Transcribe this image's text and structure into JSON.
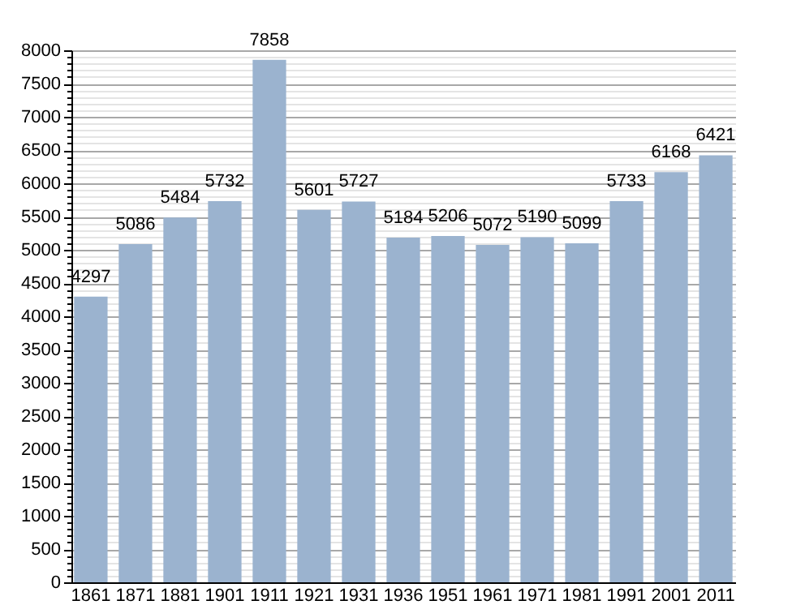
{
  "chart_data": {
    "type": "bar",
    "categories": [
      "1861",
      "1871",
      "1881",
      "1901",
      "1911",
      "1921",
      "1931",
      "1936",
      "1951",
      "1961",
      "1971",
      "1981",
      "1991",
      "2001",
      "2011"
    ],
    "values": [
      4297,
      5086,
      5484,
      5732,
      7858,
      5601,
      5727,
      5184,
      5206,
      5072,
      5190,
      5099,
      5733,
      6168,
      6421
    ],
    "color": "#9bb3cf",
    "ylim": [
      0,
      8000
    ],
    "yticks": [
      0,
      {
        "value": 100,
        "label": null
      },
      {
        "value": 200,
        "label": null
      },
      {
        "value": 300,
        "label": null
      },
      {
        "value": 400,
        "label": null
      },
      500,
      {
        "value": 600,
        "label": null
      },
      {
        "value": 700,
        "label": null
      },
      {
        "value": 800,
        "label": null
      },
      {
        "value": 900,
        "label": null
      },
      1000,
      {
        "value": 1100,
        "label": null
      },
      {
        "value": 1200,
        "label": null
      },
      {
        "value": 1300,
        "label": null
      },
      {
        "value": 1400,
        "label": null
      },
      1500,
      {
        "value": 1600,
        "label": null
      },
      {
        "value": 1700,
        "label": null
      },
      {
        "value": 1800,
        "label": null
      },
      {
        "value": 1900,
        "label": null
      },
      2000,
      {
        "value": 2100,
        "label": null
      },
      {
        "value": 2200,
        "label": null
      },
      {
        "value": 2300,
        "label": null
      },
      {
        "value": 2400,
        "label": null
      },
      2500,
      {
        "value": 2600,
        "label": null
      },
      {
        "value": 2700,
        "label": null
      },
      {
        "value": 2800,
        "label": null
      },
      {
        "value": 2900,
        "label": null
      },
      3000,
      {
        "value": 3100,
        "label": null
      },
      {
        "value": 3200,
        "label": null
      },
      {
        "value": 3300,
        "label": null
      },
      {
        "value": 3400,
        "label": null
      },
      3500,
      {
        "value": 3600,
        "label": null
      },
      {
        "value": 3700,
        "label": null
      },
      {
        "value": 3800,
        "label": null
      },
      {
        "value": 3900,
        "label": null
      },
      4000,
      {
        "value": 4100,
        "label": null
      },
      {
        "value": 4200,
        "label": null
      },
      {
        "value": 4300,
        "label": null
      },
      {
        "value": 4400,
        "label": null
      },
      4500,
      {
        "value": 4600,
        "label": null
      },
      {
        "value": 4700,
        "label": null
      },
      {
        "value": 4800,
        "label": null
      },
      {
        "value": 4900,
        "label": null
      },
      5000,
      {
        "value": 5100,
        "label": null
      },
      {
        "value": 5200,
        "label": null
      },
      {
        "value": 5300,
        "label": null
      },
      {
        "value": 5400,
        "label": null
      },
      5500,
      {
        "value": 5600,
        "label": null
      },
      {
        "value": 5700,
        "label": null
      },
      {
        "value": 5800,
        "label": null
      },
      {
        "value": 5900,
        "label": null
      },
      6000,
      {
        "value": 6100,
        "label": null
      },
      {
        "value": 6200,
        "label": null
      },
      {
        "value": 6300,
        "label": null
      },
      {
        "value": 6400,
        "label": null
      },
      6500,
      {
        "value": 6600,
        "label": null
      },
      {
        "value": 6700,
        "label": null
      },
      {
        "value": 6800,
        "label": null
      },
      {
        "value": 6900,
        "label": null
      },
      7000,
      {
        "value": 7100,
        "label": null
      },
      {
        "value": 7200,
        "label": null
      },
      {
        "value": 7300,
        "label": null
      },
      {
        "value": 7400,
        "label": null
      },
      7500,
      {
        "value": 7600,
        "label": null
      },
      {
        "value": 7700,
        "label": null
      },
      {
        "value": 7800,
        "label": null
      },
      {
        "value": 7900,
        "label": null
      },
      8000
    ],
    "grid": "y",
    "data_labels": true
  }
}
